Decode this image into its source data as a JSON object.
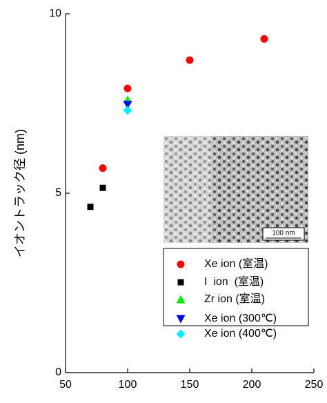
{
  "chart_data": {
    "type": "scatter",
    "y_label": "イオントラック径 (nm)",
    "xlim": [
      50,
      250
    ],
    "xticks": [
      50,
      100,
      150,
      200,
      250
    ],
    "ylim": [
      0,
      10
    ],
    "yticks": [
      0,
      5,
      10
    ],
    "grid": false,
    "inset_scale_label": "100 nm",
    "series": [
      {
        "name": "Xe ion (室温)",
        "color": "#ff0000",
        "marker": "circle",
        "x": [
          80,
          100,
          150,
          210
        ],
        "values": [
          5.7,
          7.92,
          8.71,
          9.3
        ]
      },
      {
        "name": "I  ion  (室温)",
        "color": "#000000",
        "marker": "square",
        "x": [
          70,
          80
        ],
        "values": [
          4.62,
          5.15
        ]
      },
      {
        "name": "Zr ion (室温)",
        "color": "#00ee00",
        "marker": "triangle-up",
        "x": [
          100
        ],
        "values": [
          7.6
        ]
      },
      {
        "name": "Xe ion (300℃)",
        "color": "#0000ff",
        "marker": "triangle-down",
        "x": [
          100
        ],
        "values": [
          7.47
        ]
      },
      {
        "name": "Xe ion (400℃)",
        "color": "#00eeff",
        "marker": "diamond",
        "x": [
          100
        ],
        "values": [
          7.31
        ]
      }
    ]
  }
}
